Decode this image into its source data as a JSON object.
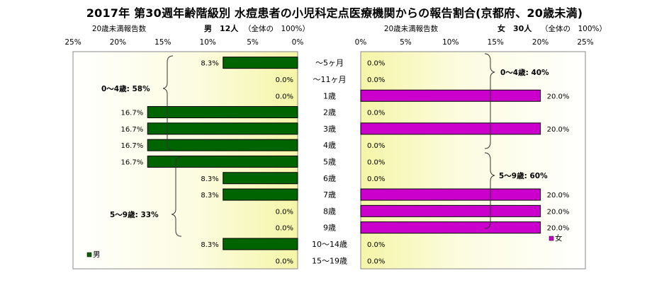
{
  "title": "2017年 第30週年齢階級別 水痘患者の小児科定点医療機関からの報告割合(京都府、20歳未満)",
  "chart_data": [
    {
      "type": "bar",
      "orientation": "horizontal",
      "direction": "reversed",
      "axis_label": "20歳未満報告数",
      "header": "男　12人",
      "header_note": "（全体の　100%）",
      "legend": "男",
      "color": "#006400",
      "xlim": [
        0,
        25
      ],
      "ticks": [
        "25%",
        "20%",
        "15%",
        "10%",
        "5%",
        "0%"
      ],
      "categories": [
        "～5ヶ月",
        "～11ヶ月",
        "1歳",
        "2歳",
        "3歳",
        "4歳",
        "5歳",
        "6歳",
        "7歳",
        "8歳",
        "9歳",
        "10～14歳",
        "15～19歳"
      ],
      "values": [
        8.3,
        0,
        0,
        16.7,
        16.7,
        16.7,
        16.7,
        8.3,
        8.3,
        0,
        0,
        8.3,
        0
      ],
      "labels": [
        "8.3%",
        "0.0%",
        "0.0%",
        "16.7%",
        "16.7%",
        "16.7%",
        "16.7%",
        "8.3%",
        "8.3%",
        "0.0%",
        "0.0%",
        "8.3%",
        "0.0%"
      ],
      "annotations": [
        "0～4歳: 58%",
        "5～9歳: 33%"
      ]
    },
    {
      "type": "bar",
      "orientation": "horizontal",
      "axis_label": "20歳未満報告数",
      "header": "女　30人",
      "header_note": "（全体の　100%）",
      "legend": "女",
      "color": "#cc00cc",
      "xlim": [
        0,
        25
      ],
      "ticks": [
        "0%",
        "5%",
        "10%",
        "15%",
        "20%",
        "25%"
      ],
      "categories": [
        "～5ヶ月",
        "～11ヶ月",
        "1歳",
        "2歳",
        "3歳",
        "4歳",
        "5歳",
        "6歳",
        "7歳",
        "8歳",
        "9歳",
        "10～14歳",
        "15～19歳"
      ],
      "values": [
        0,
        0,
        20,
        0,
        20,
        0,
        0,
        0,
        20,
        20,
        20,
        0,
        0
      ],
      "labels": [
        "0.0%",
        "0.0%",
        "20.0%",
        "0.0%",
        "20.0%",
        "0.0%",
        "0.0%",
        "0.0%",
        "20.0%",
        "20.0%",
        "20.0%",
        "0.0%",
        "0.0%"
      ],
      "annotations": [
        "0～4歳: 40%",
        "5～9歳: 60%"
      ]
    }
  ]
}
